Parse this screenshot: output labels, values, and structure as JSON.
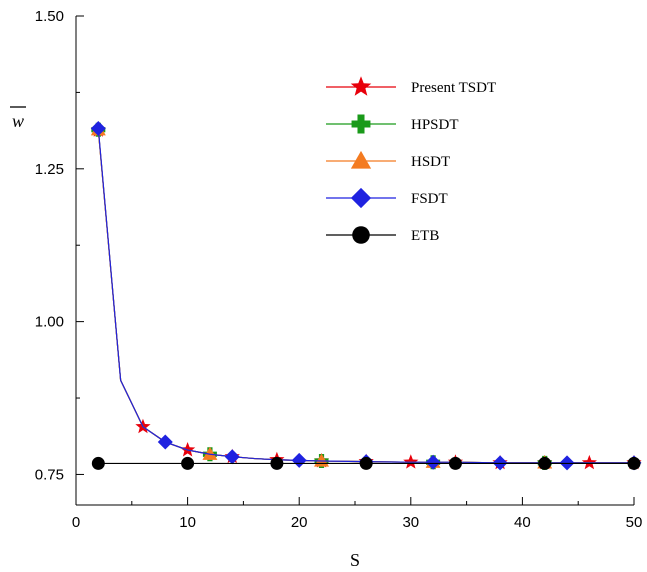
{
  "chart_data": {
    "type": "line",
    "xlabel": "S",
    "ylabel": "w",
    "xlim": [
      0,
      50
    ],
    "ylim": [
      0.7,
      1.5
    ],
    "xticks": [
      0,
      10,
      20,
      30,
      40,
      50
    ],
    "yticks": [
      0.75,
      1.0,
      1.25,
      1.5
    ],
    "xtick_labels": [
      "0",
      "10",
      "20",
      "30",
      "40",
      "50"
    ],
    "ytick_labels": [
      "0.75",
      "1.00",
      "1.25",
      "1.50"
    ],
    "grid": false,
    "legend_position": "top-right",
    "series": [
      {
        "name": "Present TSDT",
        "color": "#e8000b",
        "marker": "star",
        "x": [
          2,
          4,
          6,
          8,
          10,
          12,
          14,
          16,
          18,
          20,
          22,
          26,
          30,
          34,
          38,
          42,
          46,
          50
        ],
        "y": [
          1.313,
          0.904,
          0.828,
          0.803,
          0.79,
          0.783,
          0.779,
          0.776,
          0.774,
          0.773,
          0.772,
          0.771,
          0.77,
          0.77,
          0.769,
          0.769,
          0.769,
          0.769
        ],
        "marker_x": [
          2,
          6,
          10,
          14,
          18,
          22,
          26,
          30,
          34,
          38,
          42,
          46,
          50
        ]
      },
      {
        "name": "HPSDT",
        "color": "#1a9a1a",
        "marker": "plus",
        "x": [
          2,
          4,
          6,
          8,
          10,
          12,
          14,
          16,
          18,
          20,
          22,
          26,
          30,
          34,
          38,
          42,
          46,
          50
        ],
        "y": [
          1.314,
          0.904,
          0.828,
          0.803,
          0.79,
          0.783,
          0.779,
          0.776,
          0.774,
          0.773,
          0.772,
          0.771,
          0.77,
          0.77,
          0.769,
          0.769,
          0.769,
          0.769
        ],
        "marker_x": [
          2,
          12,
          22,
          32,
          42
        ]
      },
      {
        "name": "HSDT",
        "color": "#f47b20",
        "marker": "triangle",
        "x": [
          2,
          4,
          6,
          8,
          10,
          12,
          14,
          16,
          18,
          20,
          22,
          26,
          30,
          34,
          38,
          42,
          46,
          50
        ],
        "y": [
          1.314,
          0.904,
          0.828,
          0.803,
          0.79,
          0.783,
          0.779,
          0.776,
          0.774,
          0.773,
          0.772,
          0.771,
          0.77,
          0.77,
          0.769,
          0.769,
          0.769,
          0.769
        ],
        "marker_x": [
          2,
          12,
          22,
          32,
          42
        ]
      },
      {
        "name": "FSDT",
        "color": "#1f22e0",
        "marker": "diamond",
        "x": [
          2,
          4,
          6,
          8,
          10,
          12,
          14,
          16,
          18,
          20,
          22,
          26,
          30,
          34,
          38,
          42,
          46,
          50
        ],
        "y": [
          1.316,
          0.904,
          0.828,
          0.803,
          0.79,
          0.783,
          0.779,
          0.776,
          0.774,
          0.773,
          0.772,
          0.771,
          0.77,
          0.77,
          0.769,
          0.769,
          0.769,
          0.769
        ],
        "marker_x": [
          2,
          8,
          14,
          20,
          26,
          32,
          38,
          44,
          50
        ]
      },
      {
        "name": "ETB",
        "color": "#000000",
        "marker": "circle",
        "x": [
          2,
          50
        ],
        "y": [
          0.768,
          0.768
        ],
        "marker_x": [
          2,
          10,
          18,
          26,
          34,
          42,
          50
        ]
      }
    ]
  }
}
